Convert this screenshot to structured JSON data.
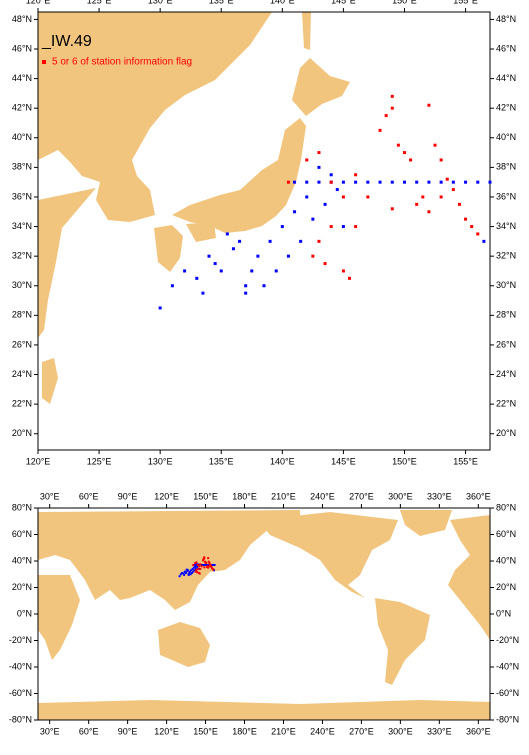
{
  "title": "_IW.49",
  "legend": "5 or 6 of station information flag",
  "top_map": {
    "xlim": [
      120,
      157
    ],
    "ylim": [
      18.9,
      48.5
    ],
    "xticks": [
      {
        "value": 120,
        "label": "120°E"
      },
      {
        "value": 125,
        "label": "125°E"
      },
      {
        "value": 130,
        "label": "130°E"
      },
      {
        "value": 135,
        "label": "135°E"
      },
      {
        "value": 140,
        "label": "140°E"
      },
      {
        "value": 145,
        "label": "145°E"
      },
      {
        "value": 150,
        "label": "150°E"
      },
      {
        "value": 155,
        "label": "155°E"
      }
    ],
    "yticks": [
      {
        "value": 20,
        "label": "20°N"
      },
      {
        "value": 22,
        "label": "22°N"
      },
      {
        "value": 24,
        "label": "24°N"
      },
      {
        "value": 26,
        "label": "26°N"
      },
      {
        "value": 28,
        "label": "28°N"
      },
      {
        "value": 30,
        "label": "30°N"
      },
      {
        "value": 32,
        "label": "32°N"
      },
      {
        "value": 34,
        "label": "34°N"
      },
      {
        "value": 36,
        "label": "36°N"
      },
      {
        "value": 38,
        "label": "38°N"
      },
      {
        "value": 40,
        "label": "40°N"
      },
      {
        "value": 42,
        "label": "42°N"
      },
      {
        "value": 44,
        "label": "44°N"
      },
      {
        "value": 46,
        "label": "46°N"
      },
      {
        "value": 48,
        "label": "48°N"
      }
    ]
  },
  "world_map": {
    "xlim": [
      21,
      369
    ],
    "ylim": [
      -80,
      80
    ],
    "xticks": [
      {
        "value": 30,
        "label": "30°E"
      },
      {
        "value": 60,
        "label": "60°E"
      },
      {
        "value": 90,
        "label": "90°E"
      },
      {
        "value": 120,
        "label": "120°E"
      },
      {
        "value": 150,
        "label": "150°E"
      },
      {
        "value": 180,
        "label": "180°E"
      },
      {
        "value": 210,
        "label": "210°E"
      },
      {
        "value": 240,
        "label": "240°E"
      },
      {
        "value": 270,
        "label": "270°E"
      },
      {
        "value": 300,
        "label": "300°E"
      },
      {
        "value": 330,
        "label": "330°E"
      },
      {
        "value": 360,
        "label": "360°E"
      }
    ],
    "yticks": [
      {
        "value": -80,
        "label": "-80°N"
      },
      {
        "value": -60,
        "label": "-60°N"
      },
      {
        "value": -40,
        "label": "-40°N"
      },
      {
        "value": -20,
        "label": "-20°N"
      },
      {
        "value": 0,
        "label": "0°N"
      },
      {
        "value": 20,
        "label": "20°N"
      },
      {
        "value": 40,
        "label": "40°N"
      },
      {
        "value": 60,
        "label": "60°N"
      },
      {
        "value": 80,
        "label": "80°N"
      }
    ]
  },
  "stations": [
    {
      "color": "#0000ff",
      "lon": [
        141,
        142,
        143,
        144,
        145,
        146,
        147,
        148,
        149,
        150,
        151,
        152,
        153,
        154,
        155,
        156,
        157,
        130,
        131,
        132,
        133,
        134,
        135,
        136,
        137,
        137.5,
        138,
        139,
        140,
        141,
        142,
        143,
        144,
        141.5,
        140.5,
        138.5,
        136.5,
        135.5,
        134.5,
        133.5,
        137,
        139.5,
        142.5,
        143.5,
        144.5,
        145,
        156.5
      ],
      "lat": [
        37,
        37,
        37,
        37,
        37,
        37,
        37,
        37,
        37,
        37,
        37,
        37,
        37,
        37,
        37,
        37,
        37,
        28.5,
        30,
        31,
        30.5,
        32,
        31,
        32.5,
        30,
        31,
        32,
        33,
        34,
        35,
        36,
        38,
        37.5,
        33,
        32,
        30,
        33,
        33.5,
        31.5,
        29.5,
        29.5,
        31,
        34.5,
        35.5,
        36.5,
        34,
        33
      ]
    },
    {
      "color": "#ff0000",
      "lon": [
        142,
        143,
        144,
        145,
        146,
        148,
        148.5,
        149,
        149.5,
        150,
        150.5,
        149,
        152,
        152.5,
        153,
        153.5,
        154,
        154.5,
        155,
        155.5,
        156,
        151,
        152,
        149,
        147,
        144,
        142.5,
        143.5,
        145,
        145.5,
        146,
        151.5,
        140.5,
        143,
        153
      ],
      "lat": [
        38.5,
        39,
        37,
        36,
        37.5,
        40.5,
        41.5,
        42,
        39.5,
        39,
        38.5,
        42.8,
        42.2,
        39.5,
        38.5,
        37.2,
        36.5,
        35.5,
        34.5,
        34,
        33.5,
        35.5,
        35,
        35.2,
        36,
        34,
        32,
        31.5,
        31,
        30.5,
        34,
        36,
        37,
        33,
        36
      ]
    }
  ]
}
